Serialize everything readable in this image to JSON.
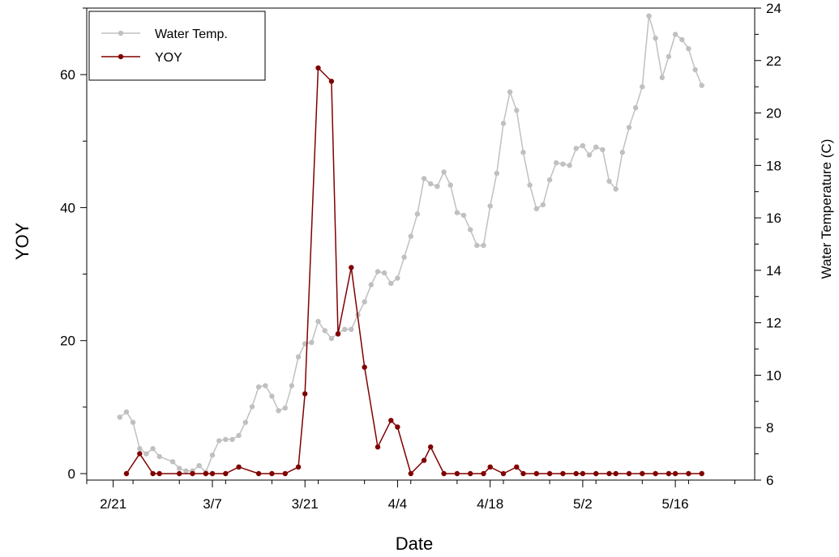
{
  "chart_data": {
    "type": "line",
    "xlabel": "Date",
    "ylabel": "YOY",
    "y2label": "Water Temperature (C)",
    "x_ticks": [
      "2/21",
      "3/7",
      "3/21",
      "4/4",
      "4/18",
      "5/2",
      "5/16"
    ],
    "xlim": [
      "2/17",
      "5/28"
    ],
    "ylim": [
      0,
      70
    ],
    "y2lim": [
      6,
      24
    ],
    "y_ticks": [
      0,
      20,
      40,
      60
    ],
    "y2_ticks": [
      6,
      8,
      10,
      12,
      14,
      16,
      18,
      20,
      22,
      24
    ],
    "legend": {
      "position": "top-left",
      "entries": [
        "Water Temp.",
        "YOY"
      ]
    },
    "colors": {
      "water_temp": "#c0c0c0",
      "yoy": "#800000"
    },
    "series": [
      {
        "name": "Water Temp.",
        "axis": "right",
        "points": [
          [
            "2/22",
            8.4
          ],
          [
            "2/23",
            8.6
          ],
          [
            "2/24",
            8.2
          ],
          [
            "2/25",
            7.2
          ],
          [
            "2/26",
            7.0
          ],
          [
            "2/27",
            7.2
          ],
          [
            "2/28",
            6.9
          ],
          [
            "3/1",
            6.7
          ],
          [
            "3/2",
            6.45
          ],
          [
            "3/3",
            6.35
          ],
          [
            "3/4",
            6.35
          ],
          [
            "3/5",
            6.55
          ],
          [
            "3/6",
            6.3
          ],
          [
            "3/7",
            6.95
          ],
          [
            "3/8",
            7.5
          ],
          [
            "3/9",
            7.55
          ],
          [
            "3/10",
            7.55
          ],
          [
            "3/11",
            7.7
          ],
          [
            "3/12",
            8.2
          ],
          [
            "3/13",
            8.8
          ],
          [
            "3/14",
            9.55
          ],
          [
            "3/15",
            9.6
          ],
          [
            "3/16",
            9.2
          ],
          [
            "3/17",
            8.65
          ],
          [
            "3/18",
            8.75
          ],
          [
            "3/19",
            9.6
          ],
          [
            "3/20",
            10.7
          ],
          [
            "3/21",
            11.2
          ],
          [
            "3/22",
            11.25
          ],
          [
            "3/23",
            12.05
          ],
          [
            "3/24",
            11.7
          ],
          [
            "3/25",
            11.4
          ],
          [
            "3/26",
            11.6
          ],
          [
            "3/27",
            11.75
          ],
          [
            "3/28",
            11.75
          ],
          [
            "3/29",
            12.3
          ],
          [
            "3/30",
            12.8
          ],
          [
            "3/31",
            13.45
          ],
          [
            "4/1",
            13.95
          ],
          [
            "4/2",
            13.9
          ],
          [
            "4/3",
            13.5
          ],
          [
            "4/4",
            13.7
          ],
          [
            "4/5",
            14.5
          ],
          [
            "4/6",
            15.3
          ],
          [
            "4/7",
            16.15
          ],
          [
            "4/8",
            17.5
          ],
          [
            "4/9",
            17.3
          ],
          [
            "4/10",
            17.2
          ],
          [
            "4/11",
            17.75
          ],
          [
            "4/12",
            17.25
          ],
          [
            "4/13",
            16.2
          ],
          [
            "4/14",
            16.1
          ],
          [
            "4/15",
            15.55
          ],
          [
            "4/16",
            14.95
          ],
          [
            "4/17",
            14.95
          ],
          [
            "4/18",
            16.45
          ],
          [
            "4/19",
            17.7
          ],
          [
            "4/20",
            19.6
          ],
          [
            "4/21",
            20.8
          ],
          [
            "4/22",
            20.1
          ],
          [
            "4/23",
            18.5
          ],
          [
            "4/24",
            17.25
          ],
          [
            "4/25",
            16.35
          ],
          [
            "4/26",
            16.5
          ],
          [
            "4/27",
            17.45
          ],
          [
            "4/28",
            18.1
          ],
          [
            "4/29",
            18.05
          ],
          [
            "4/30",
            18.0
          ],
          [
            "5/1",
            18.65
          ],
          [
            "5/2",
            18.75
          ],
          [
            "5/3",
            18.4
          ],
          [
            "5/4",
            18.7
          ],
          [
            "5/5",
            18.6
          ],
          [
            "5/6",
            17.4
          ],
          [
            "5/7",
            17.1
          ],
          [
            "5/8",
            18.5
          ],
          [
            "5/9",
            19.45
          ],
          [
            "5/10",
            20.2
          ],
          [
            "5/11",
            21.0
          ],
          [
            "5/12",
            23.7
          ],
          [
            "5/13",
            22.85
          ],
          [
            "5/14",
            21.35
          ],
          [
            "5/15",
            22.15
          ],
          [
            "5/16",
            23.0
          ],
          [
            "5/17",
            22.8
          ],
          [
            "5/18",
            22.45
          ],
          [
            "5/19",
            21.65
          ],
          [
            "5/20",
            21.05
          ]
        ]
      },
      {
        "name": "YOY",
        "axis": "left",
        "points": [
          [
            "2/23",
            0
          ],
          [
            "2/25",
            3
          ],
          [
            "2/27",
            0
          ],
          [
            "2/28",
            0
          ],
          [
            "3/2",
            0
          ],
          [
            "3/4",
            0
          ],
          [
            "3/6",
            0
          ],
          [
            "3/7",
            0
          ],
          [
            "3/9",
            0
          ],
          [
            "3/11",
            1
          ],
          [
            "3/14",
            0
          ],
          [
            "3/16",
            0
          ],
          [
            "3/18",
            0
          ],
          [
            "3/20",
            1
          ],
          [
            "3/21",
            12
          ],
          [
            "3/23",
            61
          ],
          [
            "3/25",
            59
          ],
          [
            "3/26",
            21
          ],
          [
            "3/28",
            31
          ],
          [
            "3/30",
            16
          ],
          [
            "4/1",
            4
          ],
          [
            "4/3",
            8
          ],
          [
            "4/4",
            7
          ],
          [
            "4/6",
            0
          ],
          [
            "4/8",
            2
          ],
          [
            "4/9",
            4
          ],
          [
            "4/11",
            0
          ],
          [
            "4/13",
            0
          ],
          [
            "4/15",
            0
          ],
          [
            "4/17",
            0
          ],
          [
            "4/18",
            1
          ],
          [
            "4/20",
            0
          ],
          [
            "4/22",
            1
          ],
          [
            "4/23",
            0
          ],
          [
            "4/25",
            0
          ],
          [
            "4/27",
            0
          ],
          [
            "4/29",
            0
          ],
          [
            "5/1",
            0
          ],
          [
            "5/2",
            0
          ],
          [
            "5/4",
            0
          ],
          [
            "5/6",
            0
          ],
          [
            "5/7",
            0
          ],
          [
            "5/9",
            0
          ],
          [
            "5/11",
            0
          ],
          [
            "5/13",
            0
          ],
          [
            "5/15",
            0
          ],
          [
            "5/16",
            0
          ],
          [
            "5/18",
            0
          ],
          [
            "5/20",
            0
          ]
        ]
      }
    ]
  }
}
